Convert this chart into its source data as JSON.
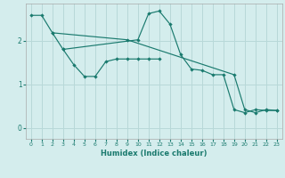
{
  "xlabel": "Humidex (Indice chaleur)",
  "bg_color": "#d4eded",
  "grid_color": "#b8d8d8",
  "line_color": "#1a7a6e",
  "xlim": [
    -0.5,
    23.5
  ],
  "ylim": [
    -0.25,
    2.85
  ],
  "yticks": [
    0,
    1,
    2
  ],
  "xticks": [
    0,
    1,
    2,
    3,
    4,
    5,
    6,
    7,
    8,
    9,
    10,
    11,
    12,
    13,
    14,
    15,
    16,
    17,
    18,
    19,
    20,
    21,
    22,
    23
  ],
  "line1_x": [
    0,
    1,
    2,
    9,
    19,
    20,
    21,
    22,
    23
  ],
  "line1_y": [
    2.58,
    2.58,
    2.18,
    2.02,
    1.22,
    0.42,
    0.35,
    0.42,
    0.4
  ],
  "line2_x": [
    2,
    3,
    10,
    11,
    12,
    13,
    14,
    15,
    16,
    17,
    18,
    19,
    20,
    21,
    22,
    23
  ],
  "line2_y": [
    2.18,
    1.8,
    2.02,
    2.62,
    2.68,
    2.38,
    1.68,
    1.35,
    1.32,
    1.22,
    1.22,
    0.42,
    0.35,
    0.42,
    0.4,
    0.4
  ],
  "line3_x": [
    3,
    4,
    5,
    6,
    7,
    8,
    9,
    10,
    11,
    12
  ],
  "line3_y": [
    1.8,
    1.45,
    1.18,
    1.18,
    1.52,
    1.58,
    1.58,
    1.58,
    1.58,
    1.58
  ]
}
